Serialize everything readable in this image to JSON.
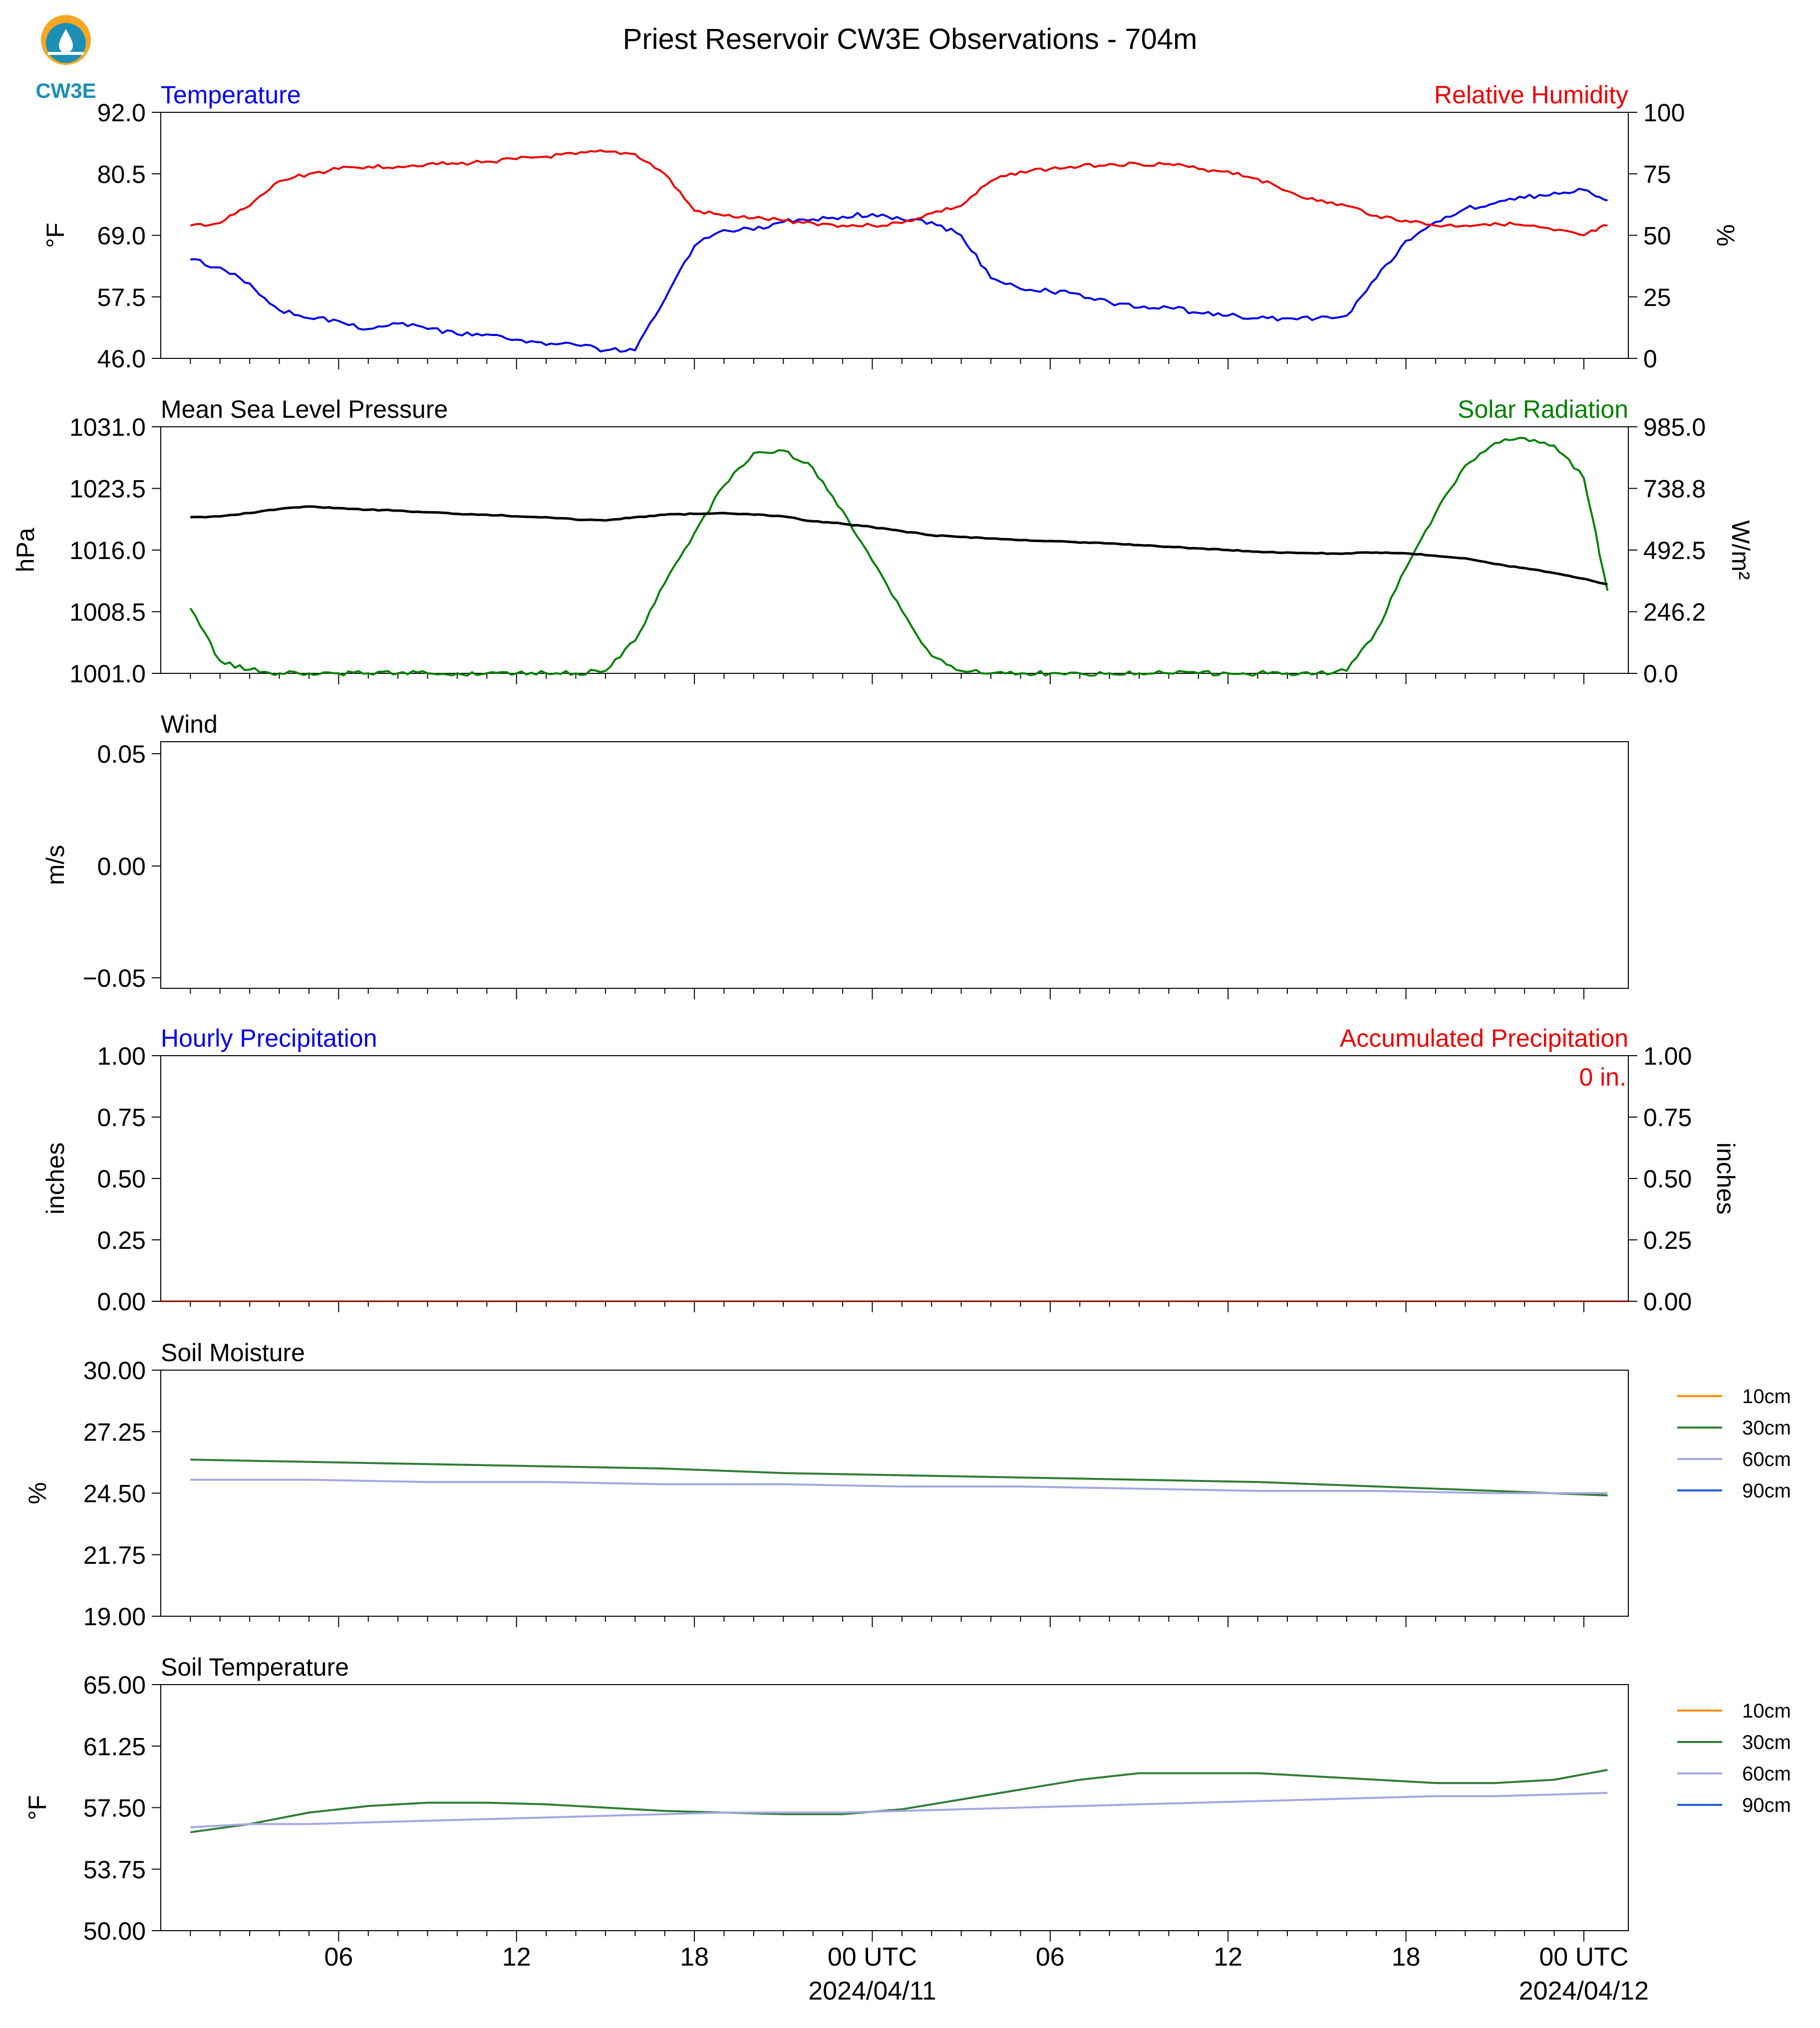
{
  "title": "Priest Reservoir CW3E Observations - 704m",
  "logo_text": "CW3E",
  "colors": {
    "temperature": "#0000ee",
    "humidity": "#ee0000",
    "pressure": "#000000",
    "solar": "#008000",
    "soil_10": "#ff8c00",
    "soil_30": "#2e7d32",
    "soil_60": "#a3a8e0",
    "soil_90": "#1f5fd6",
    "logo_orange": "#f5a623",
    "logo_teal": "#1b8fb5"
  },
  "x_axis": {
    "tick_labels": [
      "06",
      "12",
      "18",
      "00 UTC",
      "06",
      "12",
      "18",
      "00 UTC"
    ],
    "date_labels": [
      "2024/04/11",
      "2024/04/12"
    ]
  },
  "chart_data": [
    {
      "type": "line",
      "title_left": "Temperature",
      "title_right": "Relative Humidity",
      "ylabel_left": "°F",
      "ylabel_right": "%",
      "ylim_left": [
        46.0,
        92.0
      ],
      "ylim_right": [
        0,
        100
      ],
      "yticks_left": [
        "92.0",
        "80.5",
        "69.0",
        "57.5",
        "46.0"
      ],
      "yticks_right": [
        "100",
        "75",
        "50",
        "25",
        "0"
      ],
      "x_hours_since_2024-04-10T01Z": [
        0,
        1,
        2,
        3,
        4,
        5,
        6,
        7,
        8,
        9,
        10,
        11,
        12,
        13,
        14,
        15,
        16,
        17,
        18,
        19,
        20,
        21,
        22,
        23,
        24,
        25,
        26,
        27,
        28,
        29,
        30,
        31,
        32,
        33,
        34,
        35,
        36,
        37,
        38,
        39,
        40,
        41,
        42,
        43,
        44,
        45,
        46,
        47,
        47.8
      ],
      "series": [
        {
          "name": "Temperature",
          "axis": "left",
          "values": [
            64.5,
            63,
            60,
            55,
            53.5,
            53,
            51.5,
            52.5,
            51.5,
            50.5,
            50.5,
            49.5,
            48.5,
            48.5,
            47.5,
            47.5,
            57,
            67,
            70,
            70,
            71.5,
            72,
            72.5,
            73,
            72,
            71.5,
            69,
            61,
            59,
            58.5,
            58,
            56.5,
            55.5,
            55.5,
            54.5,
            54,
            53.5,
            53.5,
            53.5,
            54,
            61,
            68,
            71.5,
            74,
            75,
            76,
            77,
            77.5,
            75.5
          ]
        },
        {
          "name": "Relative Humidity",
          "axis": "right",
          "values": [
            54,
            55,
            62,
            72,
            75,
            77,
            78,
            78,
            79,
            79,
            80,
            81,
            82,
            83,
            84,
            83,
            75,
            60,
            58,
            57,
            56,
            55,
            54,
            54,
            55,
            59,
            62,
            72,
            76,
            77,
            78,
            79,
            79,
            79,
            77,
            76,
            73,
            68,
            64,
            62,
            58,
            56,
            54,
            54,
            55,
            54,
            52,
            50,
            54
          ]
        }
      ]
    },
    {
      "type": "line",
      "title_left": "Mean Sea Level Pressure",
      "title_right": "Solar Radiation",
      "ylabel_left": "hPa",
      "ylabel_right": "W/m²",
      "ylim_left": [
        1001.0,
        1031.0
      ],
      "ylim_right": [
        0.0,
        985.0
      ],
      "yticks_left": [
        "1031.0",
        "1023.5",
        "1016.0",
        "1008.5",
        "1001.0"
      ],
      "yticks_right": [
        "985.0",
        "738.8",
        "492.5",
        "246.2",
        "0.0"
      ],
      "x_hours_since_2024-04-10T01Z": [
        0,
        1,
        2,
        3,
        4,
        5,
        6,
        7,
        8,
        9,
        10,
        11,
        12,
        13,
        14,
        15,
        16,
        17,
        18,
        19,
        20,
        21,
        22,
        23,
        24,
        25,
        26,
        27,
        28,
        29,
        30,
        31,
        32,
        33,
        34,
        35,
        36,
        37,
        38,
        39,
        40,
        41,
        42,
        43,
        44,
        45,
        46,
        47,
        47.8
      ],
      "series": [
        {
          "name": "Mean Sea Level Pressure",
          "axis": "left",
          "values": [
            1020,
            1020.1,
            1020.5,
            1021,
            1021.3,
            1021.1,
            1020.9,
            1020.8,
            1020.6,
            1020.4,
            1020.3,
            1020.1,
            1020,
            1019.7,
            1019.6,
            1020,
            1020.3,
            1020.4,
            1020.5,
            1020.3,
            1020.1,
            1019.5,
            1019.2,
            1018.8,
            1018.3,
            1017.8,
            1017.6,
            1017.4,
            1017.2,
            1017.1,
            1016.9,
            1016.8,
            1016.6,
            1016.4,
            1016.2,
            1016,
            1015.8,
            1015.7,
            1015.6,
            1015.6,
            1015.7,
            1015.6,
            1015.3,
            1015,
            1014.3,
            1013.8,
            1013.2,
            1012.5,
            1011.8
          ]
        },
        {
          "name": "Solar Radiation",
          "axis": "right",
          "values": [
            260,
            50,
            15,
            0,
            0,
            0,
            0,
            0,
            0,
            0,
            0,
            0,
            0,
            0,
            10,
            130,
            360,
            560,
            750,
            880,
            890,
            820,
            650,
            450,
            250,
            70,
            10,
            0,
            0,
            0,
            0,
            0,
            0,
            0,
            0,
            0,
            0,
            0,
            0,
            10,
            170,
            420,
            640,
            830,
            920,
            940,
            910,
            780,
            330
          ]
        }
      ]
    },
    {
      "type": "line",
      "title_left": "Wind",
      "ylabel_left": "m/s",
      "ylim_left": [
        -0.055,
        0.055
      ],
      "yticks_left": [
        "0.05",
        "0.00",
        "−0.05"
      ],
      "series": []
    },
    {
      "type": "bar",
      "title_left": "Hourly Precipitation",
      "title_right": "Accumulated Precipitation",
      "ylabel_left": "inches",
      "ylabel_right": "inches",
      "ylim_left": [
        0.0,
        1.0
      ],
      "ylim_right": [
        0.0,
        1.0
      ],
      "yticks_left": [
        "1.00",
        "0.75",
        "0.50",
        "0.25",
        "0.00"
      ],
      "yticks_right": [
        "1.00",
        "0.75",
        "0.50",
        "0.25",
        "0.00"
      ],
      "annotation": "0 in.",
      "series": [
        {
          "name": "Hourly Precipitation",
          "values": [
            0
          ]
        },
        {
          "name": "Accumulated Precipitation",
          "values": [
            0
          ]
        }
      ]
    },
    {
      "type": "line",
      "title_left": "Soil Moisture",
      "ylabel_left": "%",
      "ylim_left": [
        19.0,
        30.0
      ],
      "yticks_left": [
        "30.00",
        "27.25",
        "24.50",
        "21.75",
        "19.00"
      ],
      "legend": [
        "10cm",
        "30cm",
        "60cm",
        "90cm"
      ],
      "x_hours_since_2024-04-10T01Z": [
        0,
        4,
        8,
        12,
        16,
        20,
        24,
        28,
        32,
        36,
        40,
        44,
        47.8
      ],
      "series": [
        {
          "name": "30cm",
          "values": [
            26.0,
            25.9,
            25.8,
            25.7,
            25.6,
            25.4,
            25.3,
            25.2,
            25.1,
            25.0,
            24.8,
            24.6,
            24.4
          ]
        },
        {
          "name": "60cm",
          "values": [
            25.1,
            25.1,
            25.0,
            25.0,
            24.9,
            24.9,
            24.8,
            24.8,
            24.7,
            24.6,
            24.6,
            24.5,
            24.5
          ]
        }
      ]
    },
    {
      "type": "line",
      "title_left": "Soil Temperature",
      "ylabel_left": "°F",
      "ylim_left": [
        50.0,
        65.0
      ],
      "yticks_left": [
        "65.00",
        "61.25",
        "57.50",
        "53.75",
        "50.00"
      ],
      "legend": [
        "10cm",
        "30cm",
        "60cm",
        "90cm"
      ],
      "x_hours_since_2024-04-10T01Z": [
        0,
        2,
        4,
        6,
        8,
        10,
        12,
        14,
        16,
        18,
        20,
        22,
        24,
        26,
        28,
        30,
        32,
        34,
        36,
        38,
        40,
        42,
        44,
        46,
        47.8
      ],
      "series": [
        {
          "name": "30cm",
          "values": [
            56.0,
            56.5,
            57.2,
            57.6,
            57.8,
            57.8,
            57.7,
            57.5,
            57.3,
            57.2,
            57.1,
            57.1,
            57.4,
            58.0,
            58.6,
            59.2,
            59.6,
            59.6,
            59.6,
            59.4,
            59.2,
            59.0,
            59.0,
            59.2,
            59.8
          ]
        },
        {
          "name": "60cm",
          "values": [
            56.3,
            56.5,
            56.5,
            56.6,
            56.7,
            56.8,
            56.9,
            57.0,
            57.1,
            57.2,
            57.2,
            57.2,
            57.3,
            57.4,
            57.5,
            57.6,
            57.7,
            57.8,
            57.9,
            58.0,
            58.1,
            58.2,
            58.2,
            58.3,
            58.4
          ]
        }
      ]
    }
  ]
}
